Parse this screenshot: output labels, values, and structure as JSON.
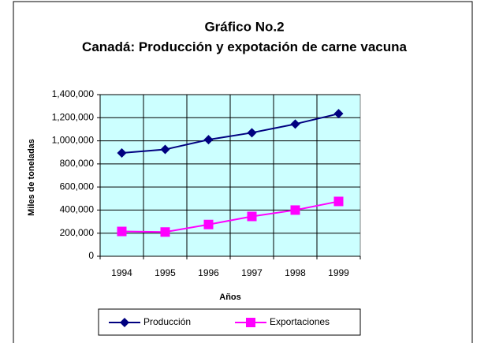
{
  "chart_data": {
    "type": "line",
    "title": "Gráfico No.2",
    "subtitle": "Canadá: Producción y expotación de carne vacuna",
    "x_label": "Años",
    "y_label": "Miles de toneladas",
    "categories": [
      "1994",
      "1995",
      "1996",
      "1997",
      "1998",
      "1999"
    ],
    "series": [
      {
        "name": "Producción",
        "color": "#000080",
        "marker": "diamond",
        "values": [
          895000,
          925000,
          1010000,
          1070000,
          1145000,
          1235000
        ]
      },
      {
        "name": "Exportaciones",
        "color": "#ff00ff",
        "marker": "square",
        "values": [
          215000,
          210000,
          275000,
          345000,
          400000,
          475000
        ]
      }
    ],
    "ylim": [
      0,
      1400000
    ],
    "yticks": [
      0,
      {
        "value": 200000,
        "label": "200,000"
      },
      {
        "value": 400000,
        "label": "400,000"
      },
      {
        "value": 600000,
        "label": "600,000"
      },
      {
        "value": 800000,
        "label": "800,000"
      },
      {
        "value": 1000000,
        "label": "1,000,000"
      },
      {
        "value": 1200000,
        "label": "1,200,000"
      },
      {
        "value": 1400000,
        "label": "1,400,000"
      }
    ],
    "grid": true,
    "plot_background": "#ccffff",
    "legend": "bottom"
  }
}
